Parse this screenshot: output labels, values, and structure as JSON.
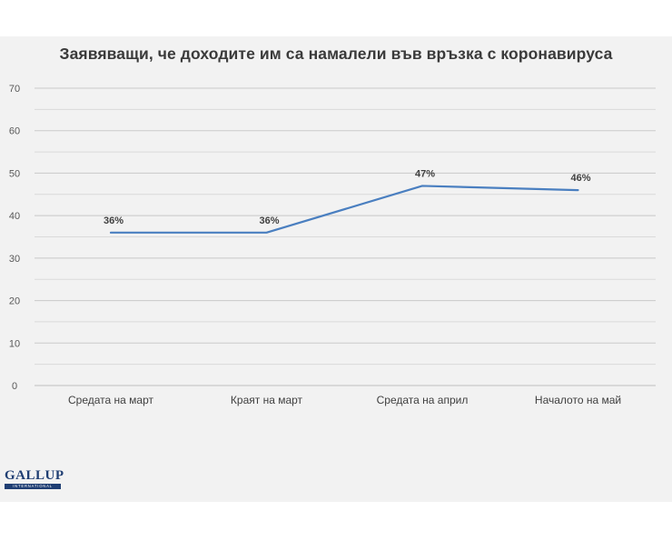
{
  "chart_data": {
    "type": "line",
    "title": "Заявяващи, че доходите им са намалели във връзка с коронавируса",
    "categories": [
      "Средата на март",
      "Краят на март",
      "Средата на април",
      "Началото на май"
    ],
    "series": [
      {
        "values": [
          36,
          36,
          47,
          46
        ],
        "labels": [
          "36%",
          "36%",
          "47%",
          "46%"
        ],
        "color": "#4a7fc0"
      }
    ],
    "y_ticks": [
      0,
      10,
      20,
      30,
      40,
      50,
      60,
      70
    ],
    "ylim": [
      0,
      70
    ],
    "grid": true
  },
  "logo": {
    "main": "GALLUP",
    "sub": "INTERNATIONAL"
  }
}
